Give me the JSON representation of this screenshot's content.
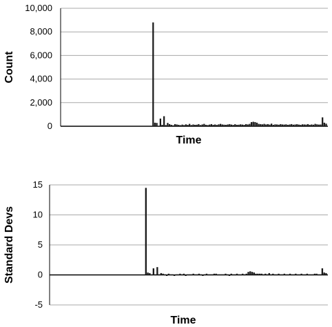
{
  "chart_data": [
    {
      "type": "bar",
      "xlabel": "Time",
      "ylabel": "Count",
      "ylim": [
        0,
        10000
      ],
      "yticks": [
        0,
        2000,
        4000,
        6000,
        8000,
        10000
      ],
      "ytick_labels": [
        "0",
        "2,000",
        "4,000",
        "6,000",
        "8,000",
        "10,000"
      ],
      "grid": true,
      "bar_color": "#1a1a1a",
      "grid_color": "#a8a8a8",
      "values": [
        0,
        0,
        0,
        0,
        0,
        0,
        0,
        0,
        0,
        0,
        0,
        0,
        0,
        0,
        0,
        0,
        0,
        0,
        0,
        0,
        0,
        0,
        0,
        0,
        0,
        0,
        0,
        0,
        0,
        0,
        0,
        0,
        0,
        0,
        0,
        0,
        0,
        0,
        0,
        0,
        0,
        0,
        0,
        0,
        0,
        0,
        0,
        0,
        0,
        0,
        8800,
        300,
        280,
        0,
        650,
        120,
        850,
        100,
        280,
        180,
        120,
        80,
        180,
        150,
        120,
        90,
        140,
        100,
        160,
        120,
        200,
        100,
        150,
        120,
        130,
        180,
        100,
        150,
        200,
        120,
        100,
        140,
        180,
        120,
        150,
        110,
        160,
        200,
        150,
        130,
        120,
        150,
        180,
        140,
        110,
        170,
        120,
        130,
        160,
        140,
        120,
        180,
        150,
        200,
        350,
        380,
        350,
        300,
        200,
        180,
        160,
        200,
        150,
        180,
        140,
        220,
        120,
        160,
        150,
        130,
        180,
        150,
        140,
        160,
        120,
        150,
        180,
        130,
        150,
        170,
        140,
        120,
        160,
        150,
        140,
        180,
        120,
        150,
        130,
        200,
        160,
        140,
        150,
        750,
        300,
        220
      ]
    },
    {
      "type": "bar",
      "xlabel": "Time",
      "ylabel": "Standard Devs",
      "ylim": [
        -5,
        15
      ],
      "yticks": [
        -5,
        0,
        5,
        10,
        15
      ],
      "ytick_labels": [
        "-5",
        "0",
        "5",
        "10",
        "15"
      ],
      "grid": true,
      "bar_color": "#1a1a1a",
      "grid_color": "#a8a8a8",
      "values": [
        0,
        0,
        0,
        0,
        0,
        0,
        0,
        0,
        0,
        0,
        0,
        0,
        0,
        0,
        0,
        0,
        0,
        0,
        0,
        0,
        0,
        0,
        0,
        0,
        0,
        0,
        0,
        0,
        0,
        0,
        0,
        0,
        0,
        0,
        0,
        0,
        0,
        0,
        0,
        0,
        0,
        0,
        0,
        0,
        0,
        0,
        0,
        0,
        0,
        0,
        14.5,
        0.4,
        0.3,
        0,
        1.1,
        0.1,
        1.3,
        0.1,
        0.3,
        0.2,
        0.1,
        -0.1,
        0.2,
        0.1,
        0.1,
        -0.1,
        0.1,
        0.1,
        0.2,
        0.1,
        0.2,
        -0.1,
        0.1,
        0.1,
        0.1,
        0.2,
        0.1,
        0.1,
        0.2,
        0.1,
        -0.1,
        0.1,
        0.2,
        0.1,
        0.1,
        0.1,
        0.2,
        0.2,
        0.1,
        0.1,
        0.1,
        0.1,
        0.2,
        0.1,
        -0.1,
        0.2,
        0.1,
        0.1,
        0.2,
        0.1,
        0.1,
        0.2,
        0.1,
        0.2,
        0.5,
        0.6,
        0.5,
        0.4,
        0.2,
        0.2,
        0.2,
        0.2,
        0.1,
        0.2,
        0.1,
        0.3,
        0.1,
        0.2,
        0.1,
        0.1,
        0.2,
        0.1,
        0.1,
        0.2,
        0.1,
        0.1,
        0.2,
        0.1,
        0.1,
        0.2,
        0.1,
        0.1,
        0.2,
        0.1,
        0.1,
        0.2,
        0.1,
        0.1,
        0.1,
        0.2,
        0.2,
        0.1,
        0.1,
        1.1,
        0.4,
        0.3
      ]
    }
  ]
}
